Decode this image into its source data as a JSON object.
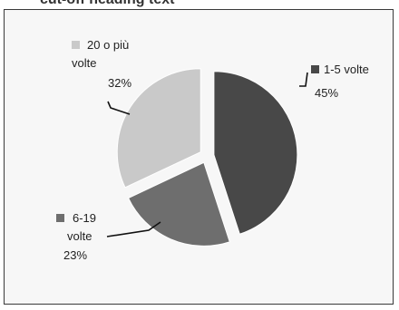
{
  "header_fragment": "cut-off heading text",
  "chart_data": {
    "type": "pie",
    "exploded": true,
    "slices": [
      {
        "label_lines": [
          "1-5 volte"
        ],
        "percent_label": "45%",
        "value": 45,
        "color": "#484848"
      },
      {
        "label_lines": [
          "6-19",
          "volte"
        ],
        "percent_label": "23%",
        "value": 23,
        "color": "#6e6e6e"
      },
      {
        "label_lines": [
          "20 o più",
          "volte"
        ],
        "percent_label": "32%",
        "value": 32,
        "color": "#c9c9c9"
      }
    ]
  }
}
